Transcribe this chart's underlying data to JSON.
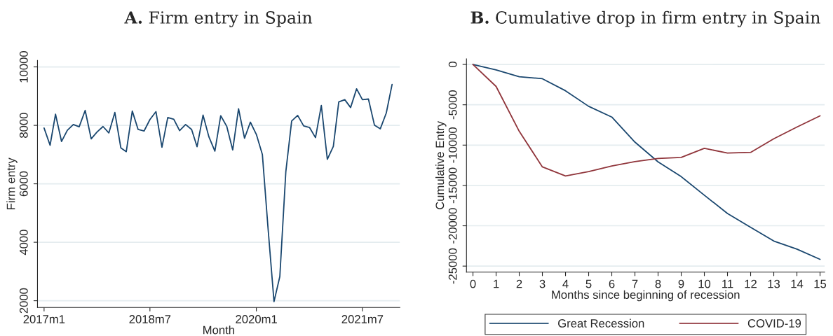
{
  "chart_data": [
    {
      "type": "line",
      "title": "A. Firm entry in Spain",
      "xlabel": "Month",
      "ylabel": "Firm entry",
      "x": [
        "2017-01",
        "2017-02",
        "2017-03",
        "2017-04",
        "2017-05",
        "2017-06",
        "2017-07",
        "2017-08",
        "2017-09",
        "2017-10",
        "2017-11",
        "2017-12",
        "2018-01",
        "2018-02",
        "2018-03",
        "2018-04",
        "2018-05",
        "2018-06",
        "2018-07",
        "2018-08",
        "2018-09",
        "2018-10",
        "2018-11",
        "2018-12",
        "2019-01",
        "2019-02",
        "2019-03",
        "2019-04",
        "2019-05",
        "2019-06",
        "2019-07",
        "2019-08",
        "2019-09",
        "2019-10",
        "2019-11",
        "2019-12",
        "2020-01",
        "2020-02",
        "2020-03",
        "2020-04",
        "2020-05",
        "2020-06",
        "2020-07",
        "2020-08",
        "2020-09",
        "2020-10",
        "2020-11",
        "2020-12",
        "2021-01",
        "2021-02",
        "2021-03",
        "2021-04",
        "2021-05",
        "2021-06",
        "2021-07",
        "2021-08",
        "2021-09",
        "2021-10",
        "2021-11",
        "2021-12"
      ],
      "series": [
        {
          "color": "#1a476f",
          "values": [
            7910,
            7320,
            8380,
            7450,
            7830,
            8030,
            7950,
            8510,
            7540,
            7770,
            7960,
            7740,
            8440,
            7230,
            7100,
            8490,
            7860,
            7810,
            8200,
            8470,
            7250,
            8270,
            8210,
            7820,
            8030,
            7860,
            7270,
            8350,
            7610,
            7120,
            8330,
            7970,
            7160,
            8570,
            7560,
            8110,
            7690,
            7000,
            4500,
            1970,
            2830,
            6420,
            8150,
            8340,
            7980,
            7930,
            7580,
            8680,
            6840,
            7280,
            8800,
            8880,
            8610,
            9250,
            8880,
            8900,
            8010,
            7880,
            8420,
            9400
          ]
        }
      ],
      "xlim": [
        "2016-11-28",
        "2022-01-10"
      ],
      "xticks": [
        {
          "value": "2017-01",
          "label": "2017m1"
        },
        {
          "value": "2018-07",
          "label": "2018m7"
        },
        {
          "value": "2020-01",
          "label": "2020m1"
        },
        {
          "value": "2021-07",
          "label": "2021m7"
        }
      ],
      "ylim": [
        1770,
        10220
      ],
      "yticks": [
        2000,
        4000,
        6000,
        8000,
        10000
      ],
      "grid": "y",
      "legend": false,
      "marker": "none",
      "line_style": "solid"
    },
    {
      "type": "line",
      "title": "B. Cumulative drop in firm entry in Spain",
      "xlabel": "Months since beginning of recession",
      "ylabel": "Cumulative Entry",
      "x": [
        0,
        1,
        2,
        3,
        4,
        5,
        6,
        7,
        8,
        9,
        10,
        11,
        12,
        13,
        14,
        15
      ],
      "series": [
        {
          "name": "Great Recession",
          "color": "#1a476f",
          "values": [
            0,
            -680,
            -1520,
            -1770,
            -3260,
            -5190,
            -6520,
            -9630,
            -12080,
            -13910,
            -16210,
            -18480,
            -20190,
            -21890,
            -22890,
            -24160
          ]
        },
        {
          "name": "COVID-19",
          "color": "#90353b",
          "values": [
            0,
            -2730,
            -8290,
            -12700,
            -13820,
            -13290,
            -12580,
            -12050,
            -11650,
            -11520,
            -10400,
            -10990,
            -10900,
            -9220,
            -7760,
            -6370
          ]
        }
      ],
      "xlim": [
        -0.28,
        15.2
      ],
      "xticks": [
        0,
        1,
        2,
        3,
        4,
        5,
        6,
        7,
        8,
        9,
        10,
        11,
        12,
        13,
        14,
        15
      ],
      "ylim": [
        -25750,
        700
      ],
      "yticks": [
        -25000,
        -20000,
        -15000,
        -10000,
        -5000,
        0
      ],
      "grid": "y",
      "legend": "bottom",
      "marker": "none",
      "line_style": "solid"
    }
  ]
}
